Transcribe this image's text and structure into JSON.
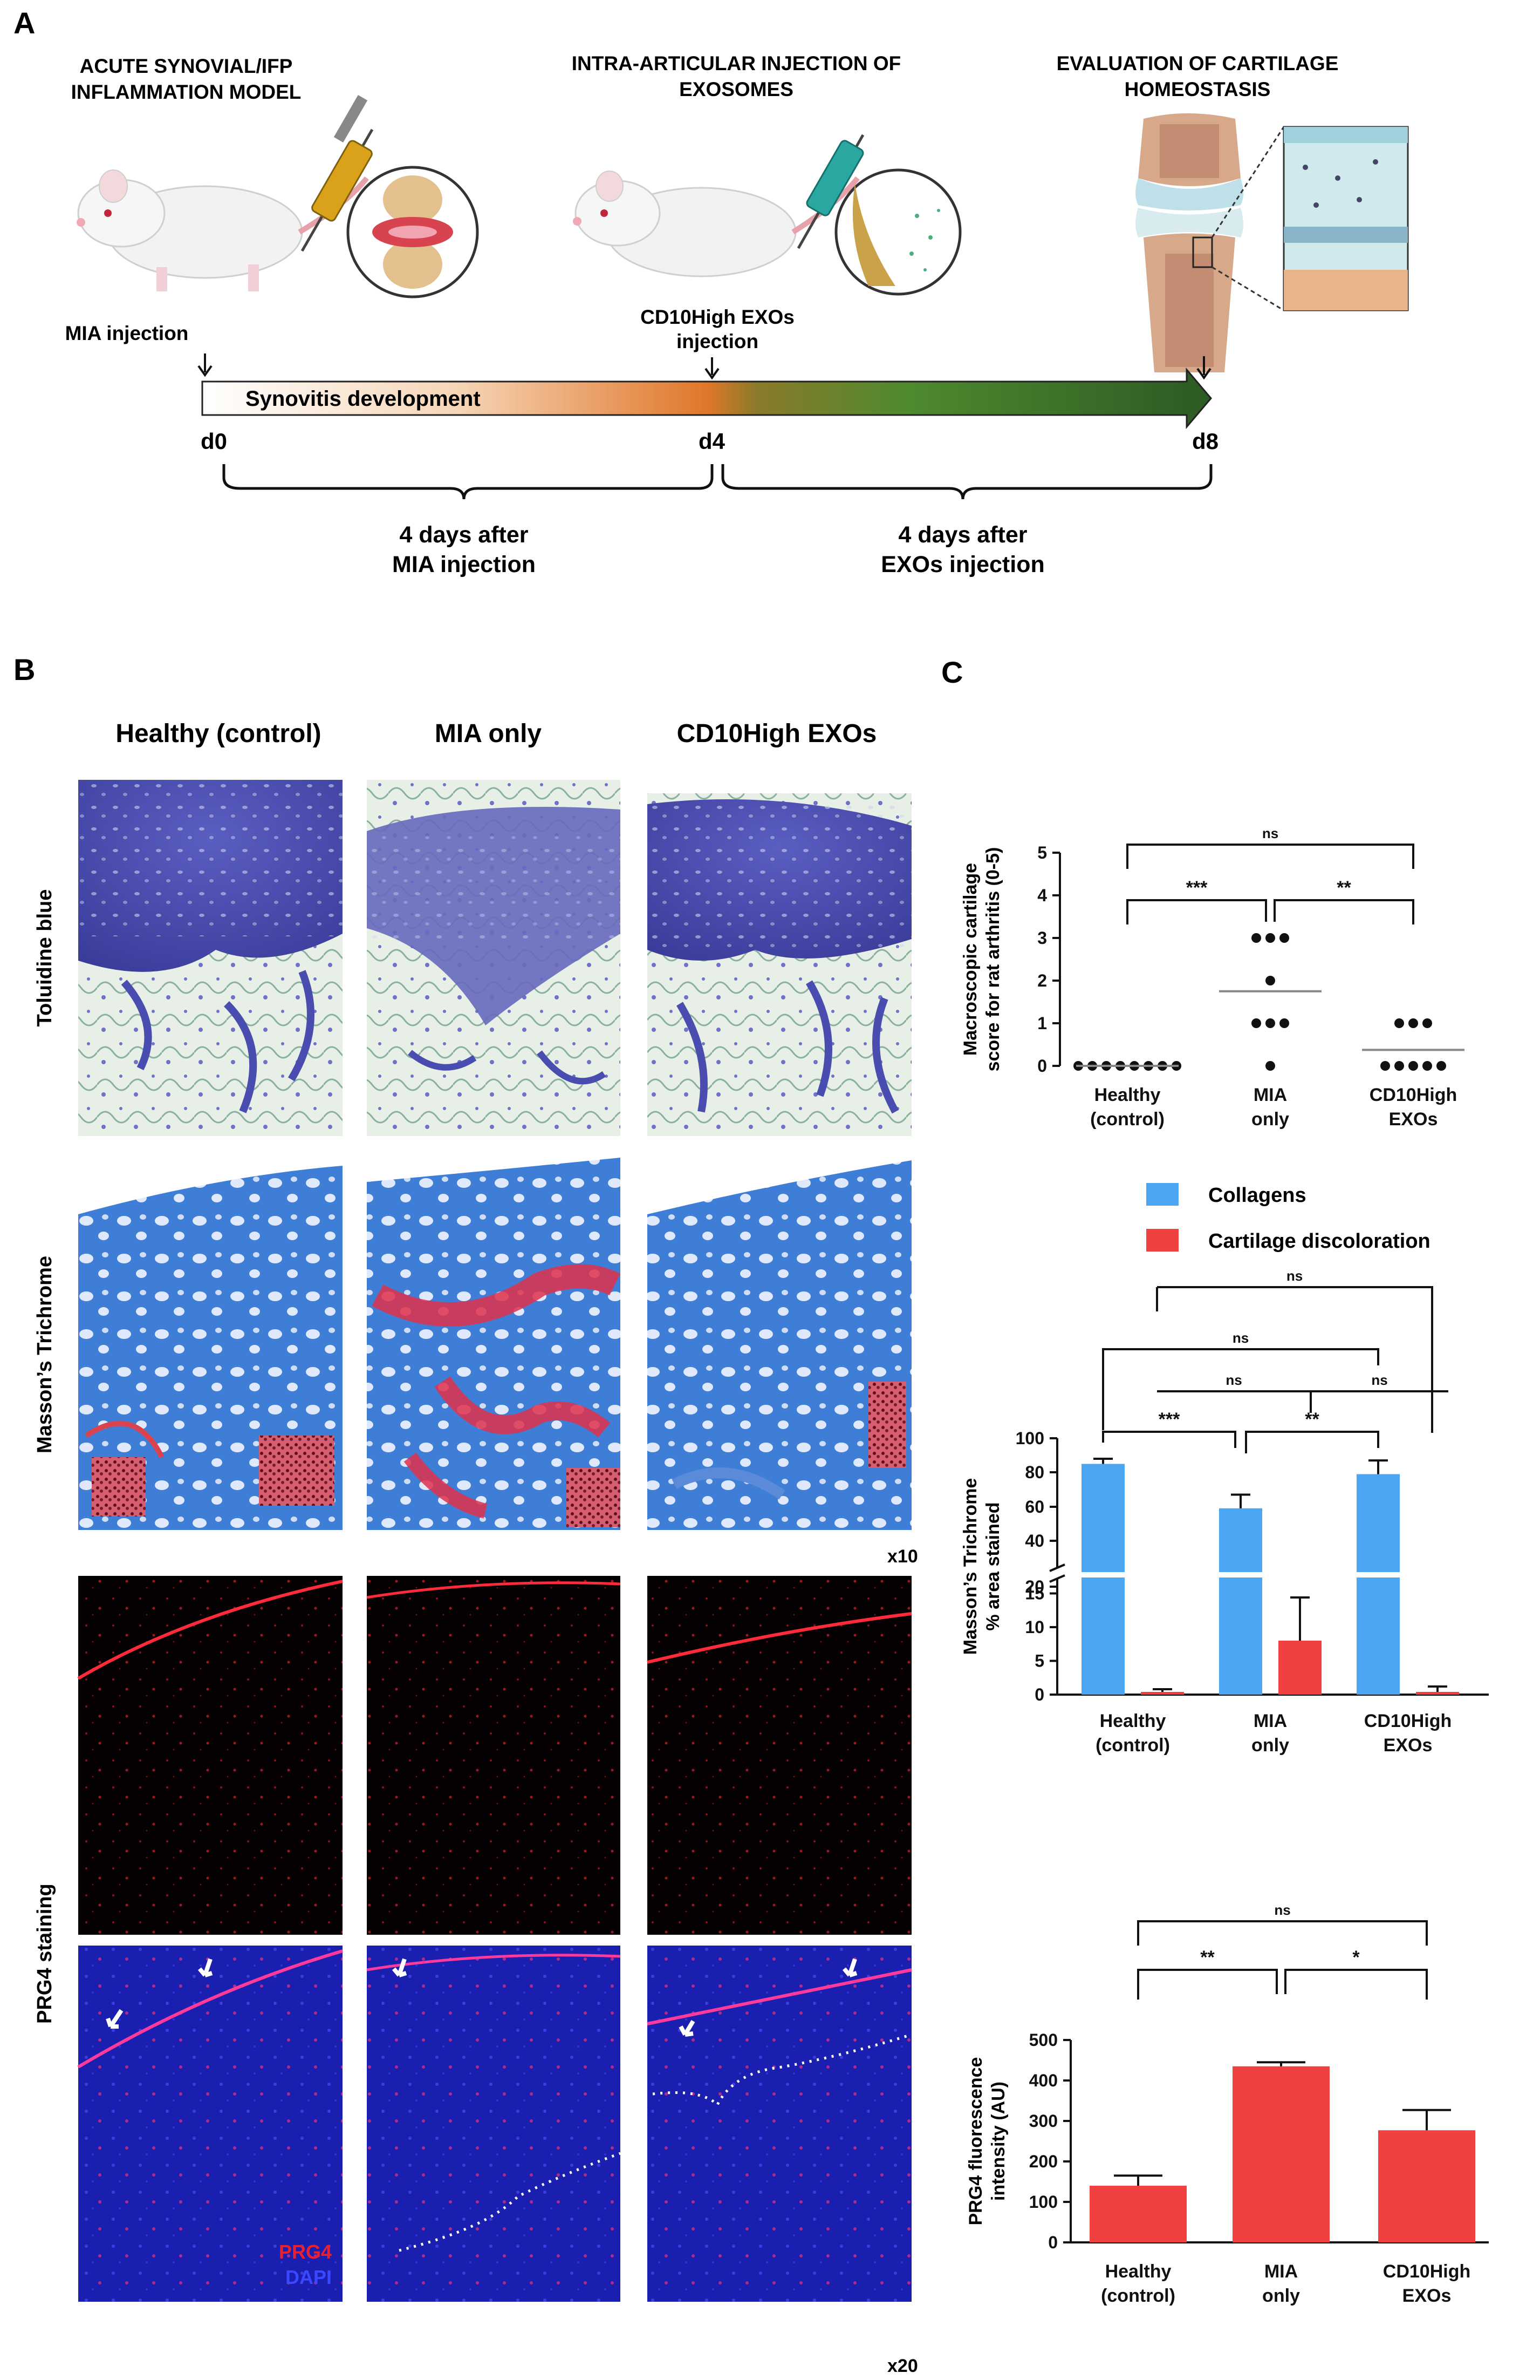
{
  "panel_a": {
    "label": "A",
    "step1_title_line1": "ACUTE SYNOVIAL/IFP",
    "step1_title_line2": "INFLAMMATION MODEL",
    "step2_title_line1": "INTRA-ARTICULAR INJECTION OF",
    "step2_title_line2": "EXOSOMES",
    "step3_title_line1": "EVALUATION OF CARTILAGE",
    "step3_title_line2": "HOMEOSTASIS",
    "mia_injection": "MIA injection",
    "exos_injection_line1": "CD10High EXOs",
    "exos_injection_line2": "injection",
    "timeline_label": "Synovitis development",
    "day0": "d0",
    "day4": "d4",
    "day8": "d8",
    "brace1_line1": "4 days after",
    "brace1_line2": "MIA injection",
    "brace2_line1": "4 days after",
    "brace2_line2": "EXOs injection"
  },
  "panel_b": {
    "label": "B",
    "col_healthy": "Healthy (control)",
    "col_mia": "MIA only",
    "col_exos": "CD10High EXOs",
    "row_toluidine": "Toluidine blue",
    "row_masson": "Masson’s Trichrome",
    "row_prg4": "PRG4 staining",
    "mag_x10": "x10",
    "mag_x20": "x20",
    "legend_prg4": "PRG4",
    "legend_dapi": "DAPI"
  },
  "panel_c": {
    "label": "C",
    "colors": {
      "collagens": "#4da6f2",
      "discoloration": "#f04040"
    },
    "categories_line1": [
      "Healthy",
      "MIA",
      "CD10High"
    ],
    "categories_line2": [
      "(control)",
      "only",
      "EXOs"
    ],
    "chart_data": [
      {
        "type": "scatter",
        "ylabel_line1": "Macroscopic cartilage",
        "ylabel_line2": "score for rat arthritis (0-5)",
        "ylim": [
          0,
          5
        ],
        "yticks": [
          "0",
          "1",
          "2",
          "3",
          "4",
          "5"
        ],
        "series": [
          {
            "category": "Healthy (control)",
            "points": [
              0,
              0,
              0,
              0,
              0,
              0,
              0,
              0
            ],
            "mean": 0
          },
          {
            "category": "MIA only",
            "points": [
              3,
              3,
              3,
              2,
              1,
              1,
              1,
              0
            ],
            "mean": 1.75
          },
          {
            "category": "CD10High EXOs",
            "points": [
              1,
              1,
              1,
              0,
              0,
              0,
              0,
              0
            ],
            "mean": 0.375
          }
        ],
        "significance": [
          {
            "pair": [
              "Healthy (control)",
              "CD10High EXOs"
            ],
            "label": "ns"
          },
          {
            "pair": [
              "Healthy (control)",
              "MIA only"
            ],
            "label": "***"
          },
          {
            "pair": [
              "MIA only",
              "CD10High EXOs"
            ],
            "label": "**"
          }
        ]
      },
      {
        "type": "bar",
        "ylabel_line1": "Masson’s Trichrome",
        "ylabel_line2": "% area stained",
        "yticks": [
          "0",
          "5",
          "10",
          "15",
          "20",
          "40",
          "60",
          "80",
          "100"
        ],
        "axis_break": [
          20,
          40
        ],
        "series": [
          {
            "name": "Collagens",
            "values": [
              85,
              59,
              79
            ],
            "errors": [
              3,
              8,
              8
            ]
          },
          {
            "name": "Cartilage discoloration",
            "values": [
              0.5,
              10,
              0.5
            ],
            "errors": [
              0.5,
              8,
              1
            ]
          }
        ],
        "significance": [
          {
            "label": "ns"
          },
          {
            "label": "ns"
          },
          {
            "label": "ns"
          },
          {
            "label": "ns"
          },
          {
            "label": "***"
          },
          {
            "label": "**"
          }
        ]
      },
      {
        "type": "bar",
        "ylabel_line1": "PRG4 fluorescence",
        "ylabel_line2": "intensity (AU)",
        "ylim": [
          0,
          500
        ],
        "yticks": [
          "0",
          "100",
          "200",
          "300",
          "400",
          "500"
        ],
        "values": [
          140,
          435,
          277
        ],
        "errors": [
          25,
          10,
          50
        ],
        "significance": [
          {
            "pair": [
              "Healthy (control)",
              "CD10High EXOs"
            ],
            "label": "ns"
          },
          {
            "pair": [
              "Healthy (control)",
              "MIA only"
            ],
            "label": "**"
          },
          {
            "pair": [
              "MIA only",
              "CD10High EXOs"
            ],
            "label": "*"
          }
        ]
      }
    ]
  }
}
